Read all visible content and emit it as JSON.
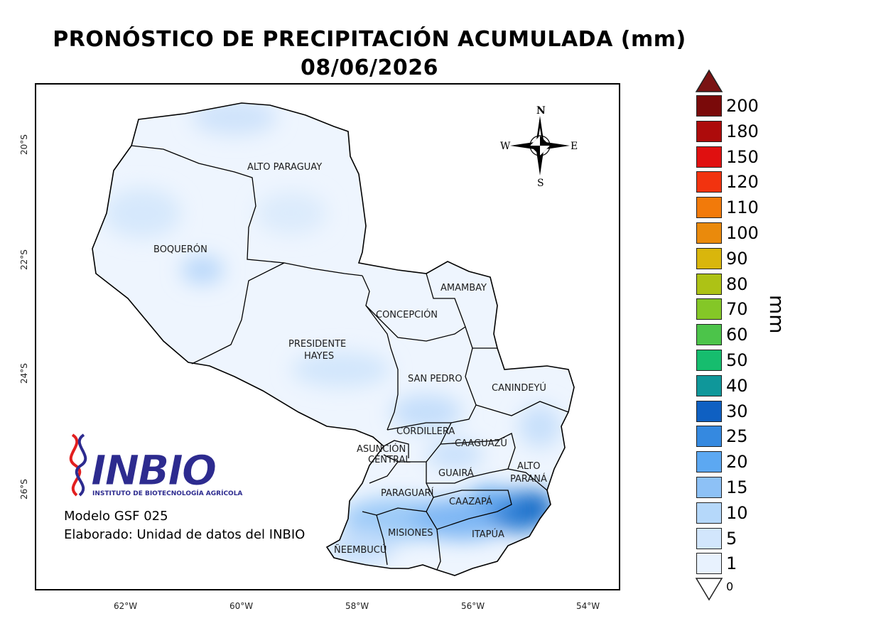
{
  "title": {
    "line1": "PRONÓSTICO DE PRECIPITACIÓN ACUMULADA (mm)",
    "line2": "08/06/2026"
  },
  "map": {
    "departments": [
      "ALTO PARAGUAY",
      "BOQUERÓN",
      "PRESIDENTE",
      "HAYES",
      "CONCEPCIÓN",
      "AMAMBAY",
      "SAN PEDRO",
      "CANINDEYÚ",
      "CORDILLERA",
      "ASUNCIÓN",
      "CENTRAL",
      "CAAGUAZÚ",
      "ALTO",
      "PARANÁ",
      "GUAIRÁ",
      "PARAGUARÍ",
      "CAAZAPÁ",
      "MISIONES",
      "ITAPÚA",
      "ÑEEMBUCÚ"
    ],
    "lon_ticks": [
      "62°W",
      "60°W",
      "58°W",
      "56°W",
      "54°W"
    ],
    "lat_ticks": [
      "20°S",
      "22°S",
      "24°S",
      "26°S"
    ],
    "compass": {
      "n": "N",
      "s": "S",
      "e": "E",
      "w": "W"
    }
  },
  "legend": {
    "unit": "mm",
    "over_color": "#7a1313",
    "under_label": "0",
    "levels": [
      {
        "label": "200",
        "color": "#7a0a0a"
      },
      {
        "label": "180",
        "color": "#ad0b0b"
      },
      {
        "label": "150",
        "color": "#e01010"
      },
      {
        "label": "120",
        "color": "#f2330f"
      },
      {
        "label": "110",
        "color": "#f27a0a"
      },
      {
        "label": "100",
        "color": "#ea8a0c"
      },
      {
        "label": "90",
        "color": "#d9b60c"
      },
      {
        "label": "80",
        "color": "#adc215"
      },
      {
        "label": "70",
        "color": "#84c727"
      },
      {
        "label": "60",
        "color": "#4cc44a"
      },
      {
        "label": "50",
        "color": "#16bd6e"
      },
      {
        "label": "40",
        "color": "#0f979a"
      },
      {
        "label": "30",
        "color": "#0f60c2"
      },
      {
        "label": "25",
        "color": "#3589e0"
      },
      {
        "label": "20",
        "color": "#5ca8f2"
      },
      {
        "label": "15",
        "color": "#8dc1f6"
      },
      {
        "label": "10",
        "color": "#b5d8fa"
      },
      {
        "label": "5",
        "color": "#d2e6fc"
      },
      {
        "label": "1",
        "color": "#e8f2fe"
      }
    ]
  },
  "logo": {
    "name": "INBIO",
    "subtitle": "INSTITUTO DE BIOTECNOLOGÍA AGRÍCOLA"
  },
  "credits": {
    "model": "Modelo GSF 025",
    "author": "Elaborado: Unidad de datos del INBIO"
  }
}
